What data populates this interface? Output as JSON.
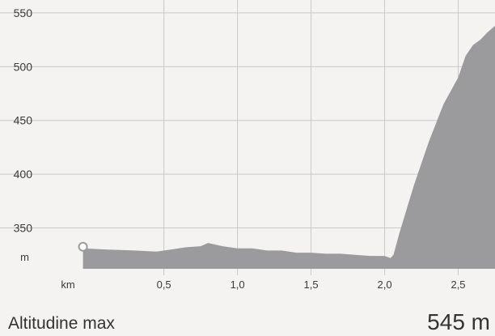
{
  "chart_data": {
    "type": "area",
    "title": "",
    "x_unit": "km",
    "y_unit": "m",
    "xlim": [
      -0.35,
      2.75
    ],
    "ylim": [
      312,
      562
    ],
    "y_ticks": [
      {
        "value": 550,
        "label": "550"
      },
      {
        "value": 500,
        "label": "500"
      },
      {
        "value": 450,
        "label": "450"
      },
      {
        "value": 400,
        "label": "400"
      },
      {
        "value": 350,
        "label": "350"
      }
    ],
    "x_ticks": [
      {
        "value": 0.5,
        "label": "0,5"
      },
      {
        "value": 1.0,
        "label": "1,0"
      },
      {
        "value": 1.5,
        "label": "1,5"
      },
      {
        "value": 2.0,
        "label": "2,0"
      },
      {
        "value": 2.5,
        "label": "2,5"
      }
    ],
    "grid": true,
    "series": [
      {
        "fill_color": "#9b9b9d",
        "x": [
          -0.05,
          0.1,
          0.3,
          0.45,
          0.55,
          0.65,
          0.75,
          0.8,
          0.9,
          1.0,
          1.1,
          1.2,
          1.3,
          1.4,
          1.5,
          1.6,
          1.7,
          1.8,
          1.9,
          2.0,
          2.04,
          2.06,
          2.1,
          2.2,
          2.3,
          2.4,
          2.5,
          2.55,
          2.6,
          2.65,
          2.7,
          2.75
        ],
        "y": [
          331,
          330,
          329,
          328,
          330,
          332,
          333,
          336,
          333,
          331,
          331,
          329,
          329,
          327,
          327,
          326,
          326,
          325,
          324,
          324,
          322,
          325,
          345,
          390,
          430,
          465,
          490,
          510,
          520,
          525,
          532,
          538
        ]
      }
    ]
  },
  "footer": {
    "label": "Altitudine max",
    "value": "545 m"
  },
  "colors": {
    "background": "#f4f3f1",
    "area": "#9b9b9d",
    "grid": "#c9c9c9",
    "marker": "#9b9b9d"
  }
}
